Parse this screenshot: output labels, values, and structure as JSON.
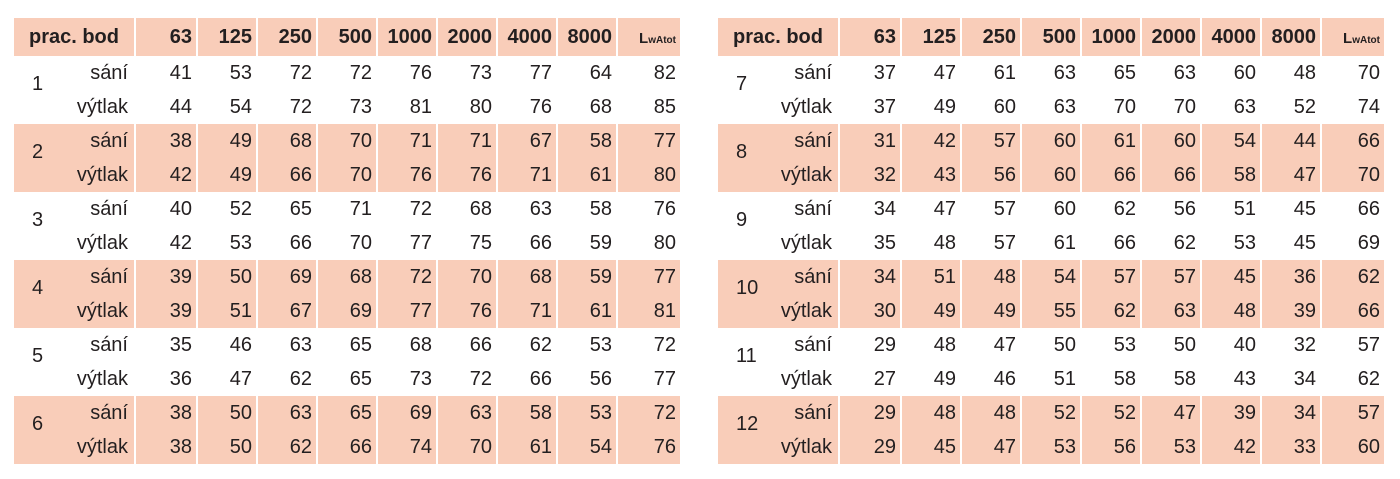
{
  "header": {
    "label": "prac. bod",
    "freqs": [
      "63",
      "125",
      "250",
      "500",
      "1000",
      "2000",
      "4000",
      "8000"
    ],
    "total_main": "L",
    "total_sub": "wAtot"
  },
  "kinds": {
    "intake": "sání",
    "exhaust": "výtlak"
  },
  "left_points": [
    {
      "id": "1",
      "sani": [
        "41",
        "53",
        "72",
        "72",
        "76",
        "73",
        "77",
        "64",
        "82"
      ],
      "vytlak": [
        "44",
        "54",
        "72",
        "73",
        "81",
        "80",
        "76",
        "68",
        "85"
      ]
    },
    {
      "id": "2",
      "sani": [
        "38",
        "49",
        "68",
        "70",
        "71",
        "71",
        "67",
        "58",
        "77"
      ],
      "vytlak": [
        "42",
        "49",
        "66",
        "70",
        "76",
        "76",
        "71",
        "61",
        "80"
      ]
    },
    {
      "id": "3",
      "sani": [
        "40",
        "52",
        "65",
        "71",
        "72",
        "68",
        "63",
        "58",
        "76"
      ],
      "vytlak": [
        "42",
        "53",
        "66",
        "70",
        "77",
        "75",
        "66",
        "59",
        "80"
      ]
    },
    {
      "id": "4",
      "sani": [
        "39",
        "50",
        "69",
        "68",
        "72",
        "70",
        "68",
        "59",
        "77"
      ],
      "vytlak": [
        "39",
        "51",
        "67",
        "69",
        "77",
        "76",
        "71",
        "61",
        "81"
      ]
    },
    {
      "id": "5",
      "sani": [
        "35",
        "46",
        "63",
        "65",
        "68",
        "66",
        "62",
        "53",
        "72"
      ],
      "vytlak": [
        "36",
        "47",
        "62",
        "65",
        "73",
        "72",
        "66",
        "56",
        "77"
      ]
    },
    {
      "id": "6",
      "sani": [
        "38",
        "50",
        "63",
        "65",
        "69",
        "63",
        "58",
        "53",
        "72"
      ],
      "vytlak": [
        "38",
        "50",
        "62",
        "66",
        "74",
        "70",
        "61",
        "54",
        "76"
      ]
    }
  ],
  "right_points": [
    {
      "id": "7",
      "sani": [
        "37",
        "47",
        "61",
        "63",
        "65",
        "63",
        "60",
        "48",
        "70"
      ],
      "vytlak": [
        "37",
        "49",
        "60",
        "63",
        "70",
        "70",
        "63",
        "52",
        "74"
      ]
    },
    {
      "id": "8",
      "sani": [
        "31",
        "42",
        "57",
        "60",
        "61",
        "60",
        "54",
        "44",
        "66"
      ],
      "vytlak": [
        "32",
        "43",
        "56",
        "60",
        "66",
        "66",
        "58",
        "47",
        "70"
      ]
    },
    {
      "id": "9",
      "sani": [
        "34",
        "47",
        "57",
        "60",
        "62",
        "56",
        "51",
        "45",
        "66"
      ],
      "vytlak": [
        "35",
        "48",
        "57",
        "61",
        "66",
        "62",
        "53",
        "45",
        "69"
      ]
    },
    {
      "id": "10",
      "sani": [
        "34",
        "51",
        "48",
        "54",
        "57",
        "57",
        "45",
        "36",
        "62"
      ],
      "vytlak": [
        "30",
        "49",
        "49",
        "55",
        "62",
        "63",
        "48",
        "39",
        "66"
      ]
    },
    {
      "id": "11",
      "sani": [
        "29",
        "48",
        "47",
        "50",
        "53",
        "50",
        "40",
        "32",
        "57"
      ],
      "vytlak": [
        "27",
        "49",
        "46",
        "51",
        "58",
        "58",
        "43",
        "34",
        "62"
      ]
    },
    {
      "id": "12",
      "sani": [
        "29",
        "48",
        "48",
        "52",
        "52",
        "47",
        "39",
        "34",
        "57"
      ],
      "vytlak": [
        "29",
        "45",
        "47",
        "53",
        "56",
        "53",
        "42",
        "33",
        "60"
      ]
    }
  ]
}
